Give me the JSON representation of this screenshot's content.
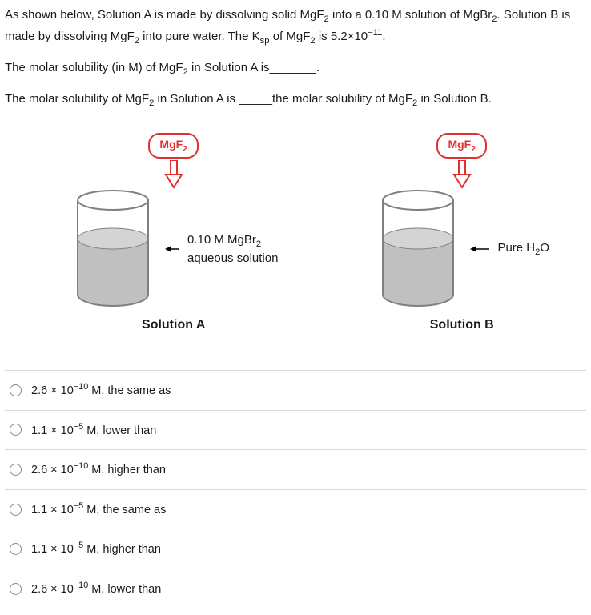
{
  "question": {
    "p1_html": "As shown below, Solution A is made by dissolving solid MgF<sub>2</sub> into a 0.10 M solution of MgBr<sub>2</sub>. Solution B is made by dissolving MgF<sub>2</sub> into pure water. The K<sub>sp</sub> of MgF<sub>2</sub> is 5.2×10<sup>−11</sup>.",
    "p2_html": "The molar solubility (in M) of MgF<sub>2</sub> in Solution A is<span class='blank'>_______</span>.",
    "p3_html": "The molar solubility of MgF<sub>2</sub> in Solution A is <span class='blank'>_____</span>the molar solubility of MgF<sub>2</sub> in Solution B."
  },
  "diagram": {
    "compound_badge_html": "MgF<sub>2</sub>",
    "solution_a": {
      "name": "Solution A",
      "caption_html": "0.10 M MgBr<sub>2</sub><br>aqueous solution"
    },
    "solution_b": {
      "name": "Solution B",
      "caption_html": "Pure H<sub>2</sub>O"
    },
    "colors": {
      "badge_border": "#e03131",
      "beaker_outline": "#808080",
      "liquid_fill": "#c0c0c0",
      "arrow_outline": "#e03131"
    }
  },
  "options": [
    {
      "html": "2.6 × 10<sup>−10</sup> M, the same as"
    },
    {
      "html": "1.1 × 10<sup>−5</sup> M, lower than"
    },
    {
      "html": "2.6 × 10<sup>−10</sup> M, higher than"
    },
    {
      "html": "1.1 × 10<sup>−5</sup> M, the same as"
    },
    {
      "html": "1.1 × 10<sup>−5</sup> M, higher than"
    },
    {
      "html": "2.6 × 10<sup>−10</sup> M, lower than"
    }
  ]
}
